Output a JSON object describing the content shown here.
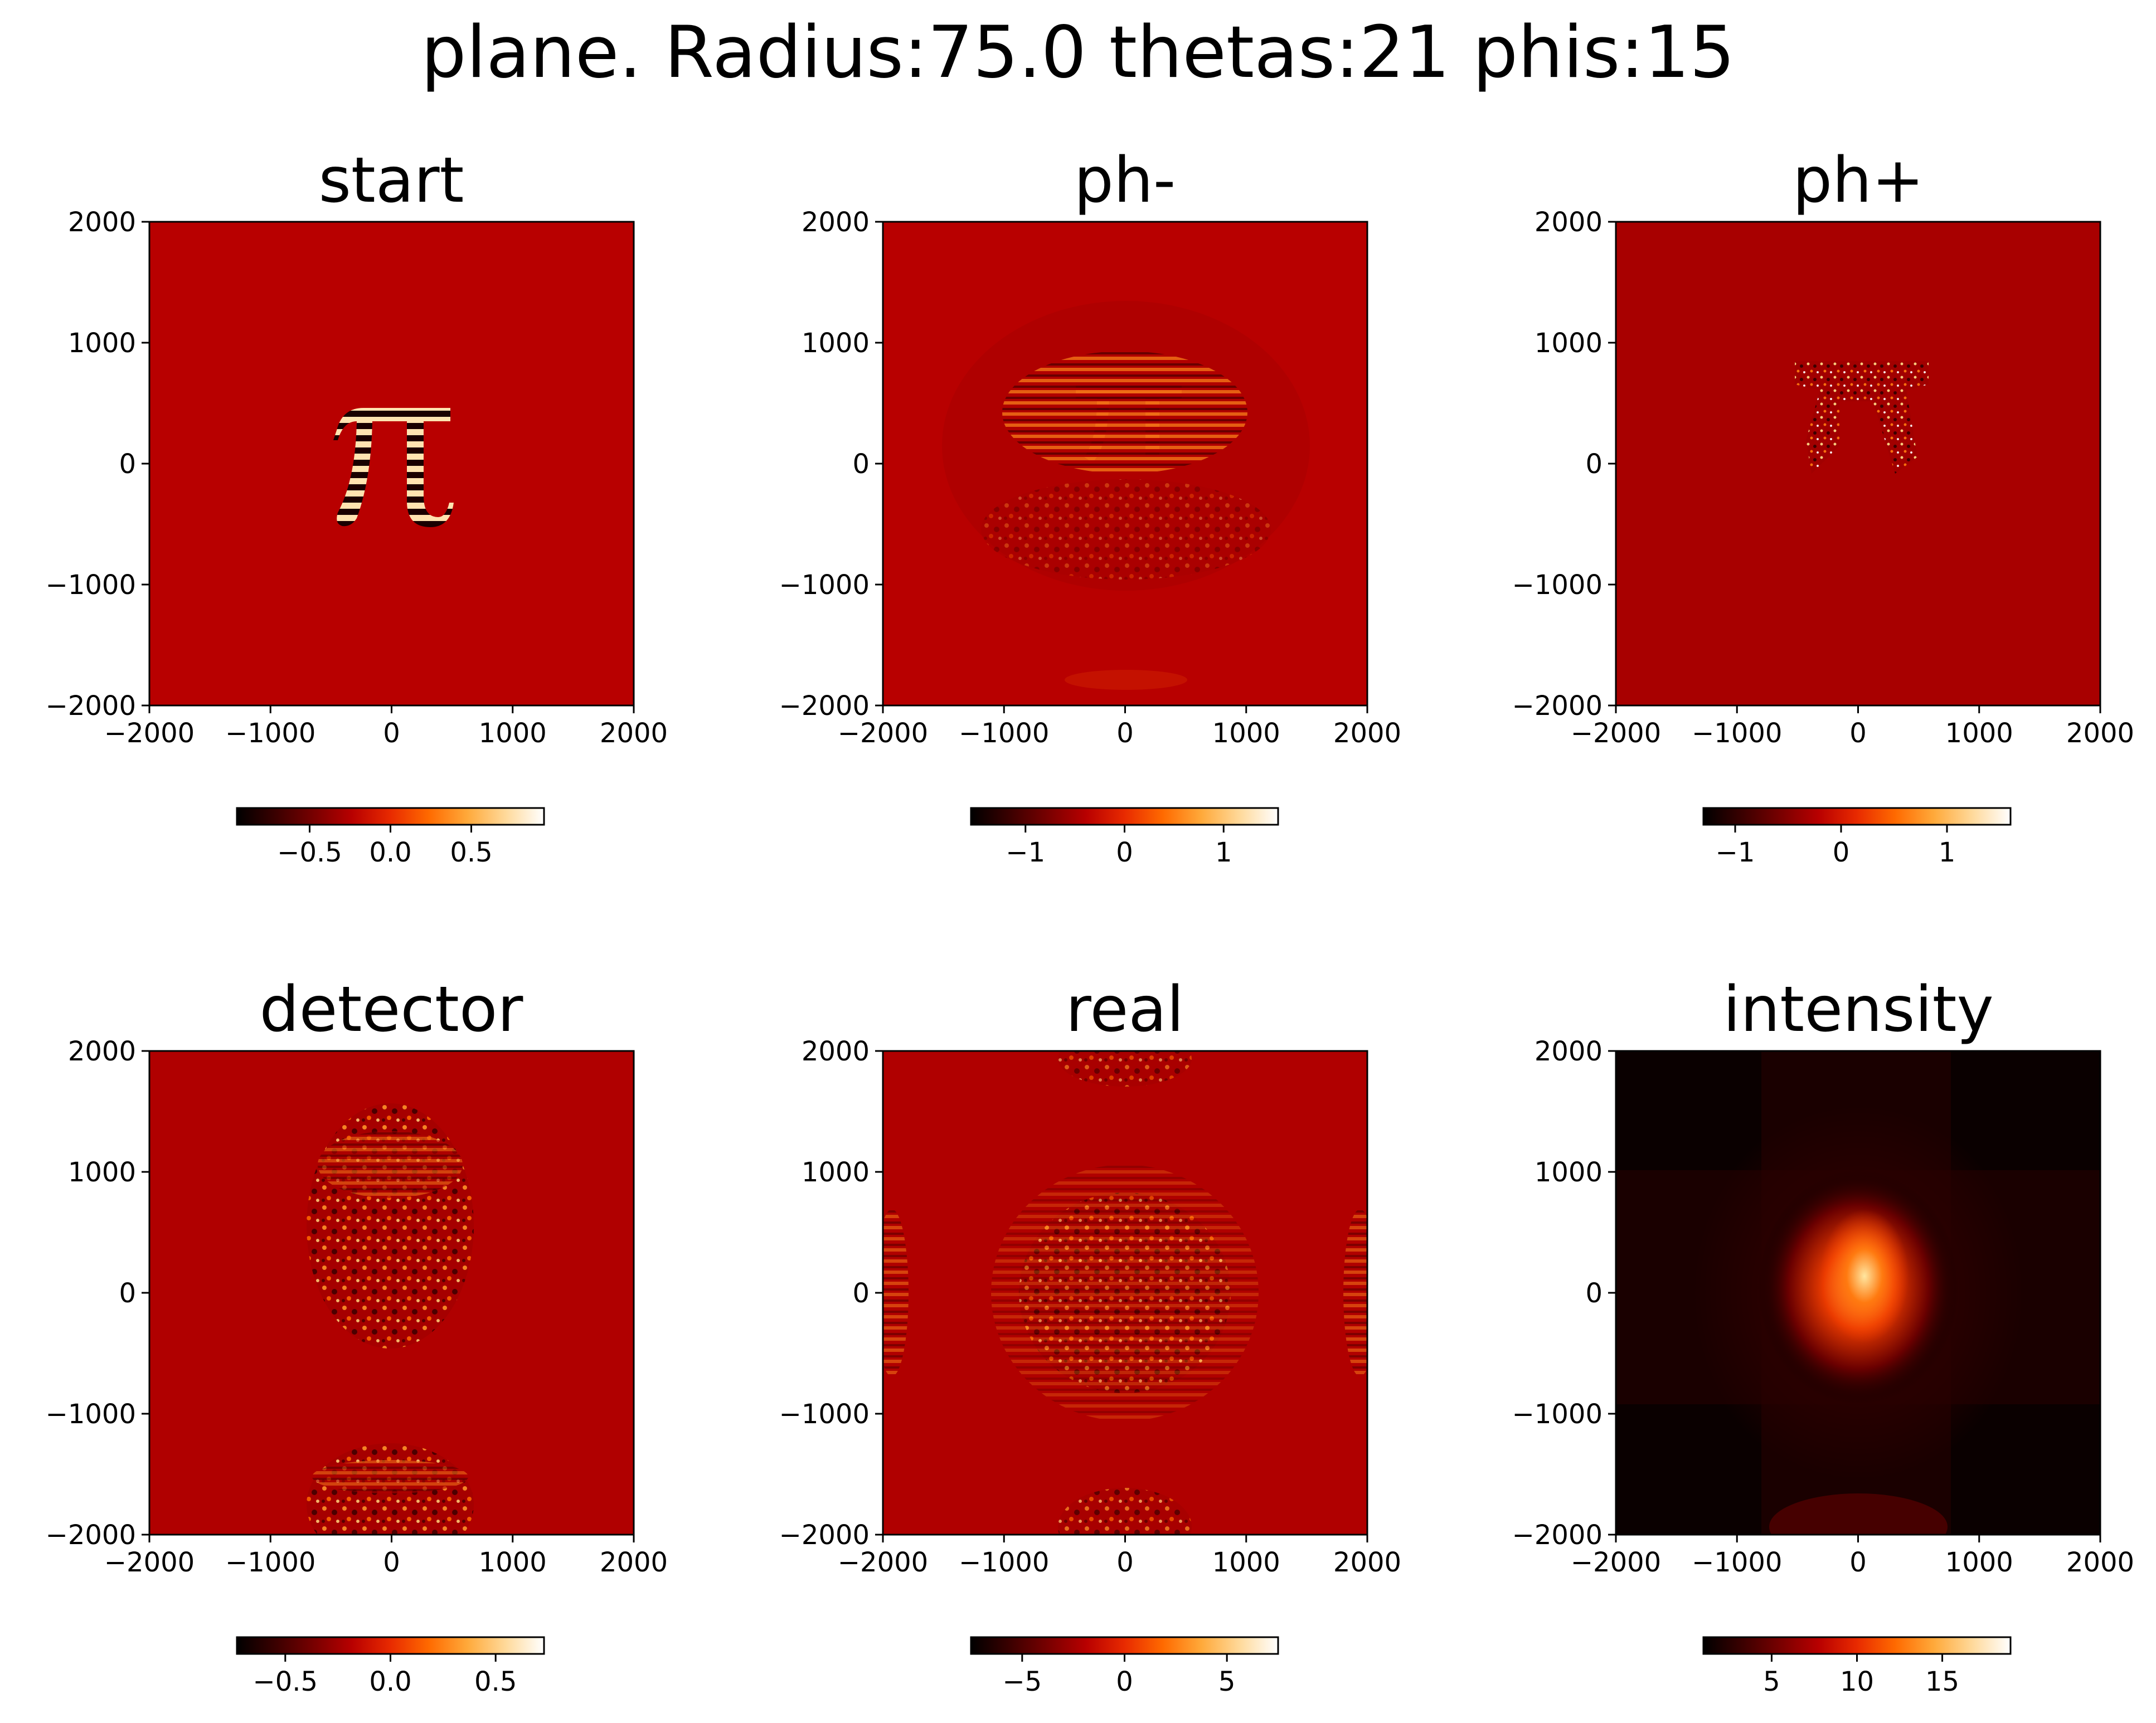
{
  "figure": {
    "suptitle": "plane. Radius:75.0 thetas:21 phis:15"
  },
  "colors": {
    "cmap": [
      "#000000",
      "#3a0000",
      "#780000",
      "#b80000",
      "#e82a00",
      "#ff6a00",
      "#ffa93a",
      "#ffd99a",
      "#ffffff"
    ],
    "background_mid": "#b80000",
    "axes_edge": "#000000"
  },
  "chart_data": [
    {
      "type": "heatmap",
      "title": "start",
      "xlim": [
        -2000,
        2000
      ],
      "ylim": [
        -2000,
        2000
      ],
      "xticks": [
        "−2000",
        "−1000",
        "0",
        "1000",
        "2000"
      ],
      "yticks": [
        "2000",
        "1000",
        "0",
        "−1000",
        "−2000"
      ],
      "colorbar": {
        "range": [
          -0.95,
          0.95
        ],
        "ticks": [
          -0.5,
          0.0,
          0.5
        ],
        "tick_labels": [
          "−0.5",
          "0.0",
          "0.5"
        ]
      },
      "description_features": [
        "pi-shaped striped pattern centered near (0, 0)"
      ]
    },
    {
      "type": "heatmap",
      "title": "ph-",
      "xlim": [
        -2000,
        2000
      ],
      "ylim": [
        -2000,
        2000
      ],
      "xticks": [
        "−2000",
        "−1000",
        "0",
        "1000",
        "2000"
      ],
      "yticks": [
        "2000",
        "1000",
        "0",
        "−1000",
        "−2000"
      ],
      "colorbar": {
        "range": [
          -1.55,
          1.55
        ],
        "ticks": [
          -1,
          0,
          1
        ],
        "tick_labels": [
          "−1",
          "0",
          "1"
        ]
      }
    },
    {
      "type": "heatmap",
      "title": "ph+",
      "xlim": [
        -2000,
        2000
      ],
      "ylim": [
        -2000,
        2000
      ],
      "xticks": [
        "−2000",
        "−1000",
        "0",
        "1000",
        "2000"
      ],
      "yticks": [
        "2000",
        "1000",
        "0",
        "−1000",
        "−2000"
      ],
      "colorbar": {
        "range": [
          -1.3,
          1.6
        ],
        "ticks": [
          -1,
          0,
          1
        ],
        "tick_labels": [
          "−1",
          "0",
          "1"
        ]
      }
    },
    {
      "type": "heatmap",
      "title": "detector",
      "xlim": [
        -2000,
        2000
      ],
      "ylim": [
        -2000,
        2000
      ],
      "xticks": [
        "−2000",
        "−1000",
        "0",
        "1000",
        "2000"
      ],
      "yticks": [
        "2000",
        "1000",
        "0",
        "−1000",
        "−2000"
      ],
      "colorbar": {
        "range": [
          -0.73,
          0.73
        ],
        "ticks": [
          -0.5,
          0.0,
          0.5
        ],
        "tick_labels": [
          "−0.5",
          "0.0",
          "0.5"
        ]
      }
    },
    {
      "type": "heatmap",
      "title": "real",
      "xlim": [
        -2000,
        2000
      ],
      "ylim": [
        -2000,
        2000
      ],
      "xticks": [
        "−2000",
        "−1000",
        "0",
        "1000",
        "2000"
      ],
      "yticks": [
        "2000",
        "1000",
        "0",
        "−1000",
        "−2000"
      ],
      "colorbar": {
        "range": [
          -7.5,
          7.5
        ],
        "ticks": [
          -5,
          0,
          5
        ],
        "tick_labels": [
          "−5",
          "0",
          "5"
        ]
      }
    },
    {
      "type": "heatmap",
      "title": "intensity",
      "xlim": [
        -2000,
        2000
      ],
      "ylim": [
        -2000,
        2000
      ],
      "xticks": [
        "−2000",
        "−1000",
        "0",
        "1000",
        "2000"
      ],
      "yticks": [
        "2000",
        "1000",
        "0",
        "−1000",
        "−2000"
      ],
      "colorbar": {
        "range": [
          1,
          19
        ],
        "ticks": [
          5,
          10,
          15
        ],
        "tick_labels": [
          "5",
          "10",
          "15"
        ]
      }
    }
  ]
}
